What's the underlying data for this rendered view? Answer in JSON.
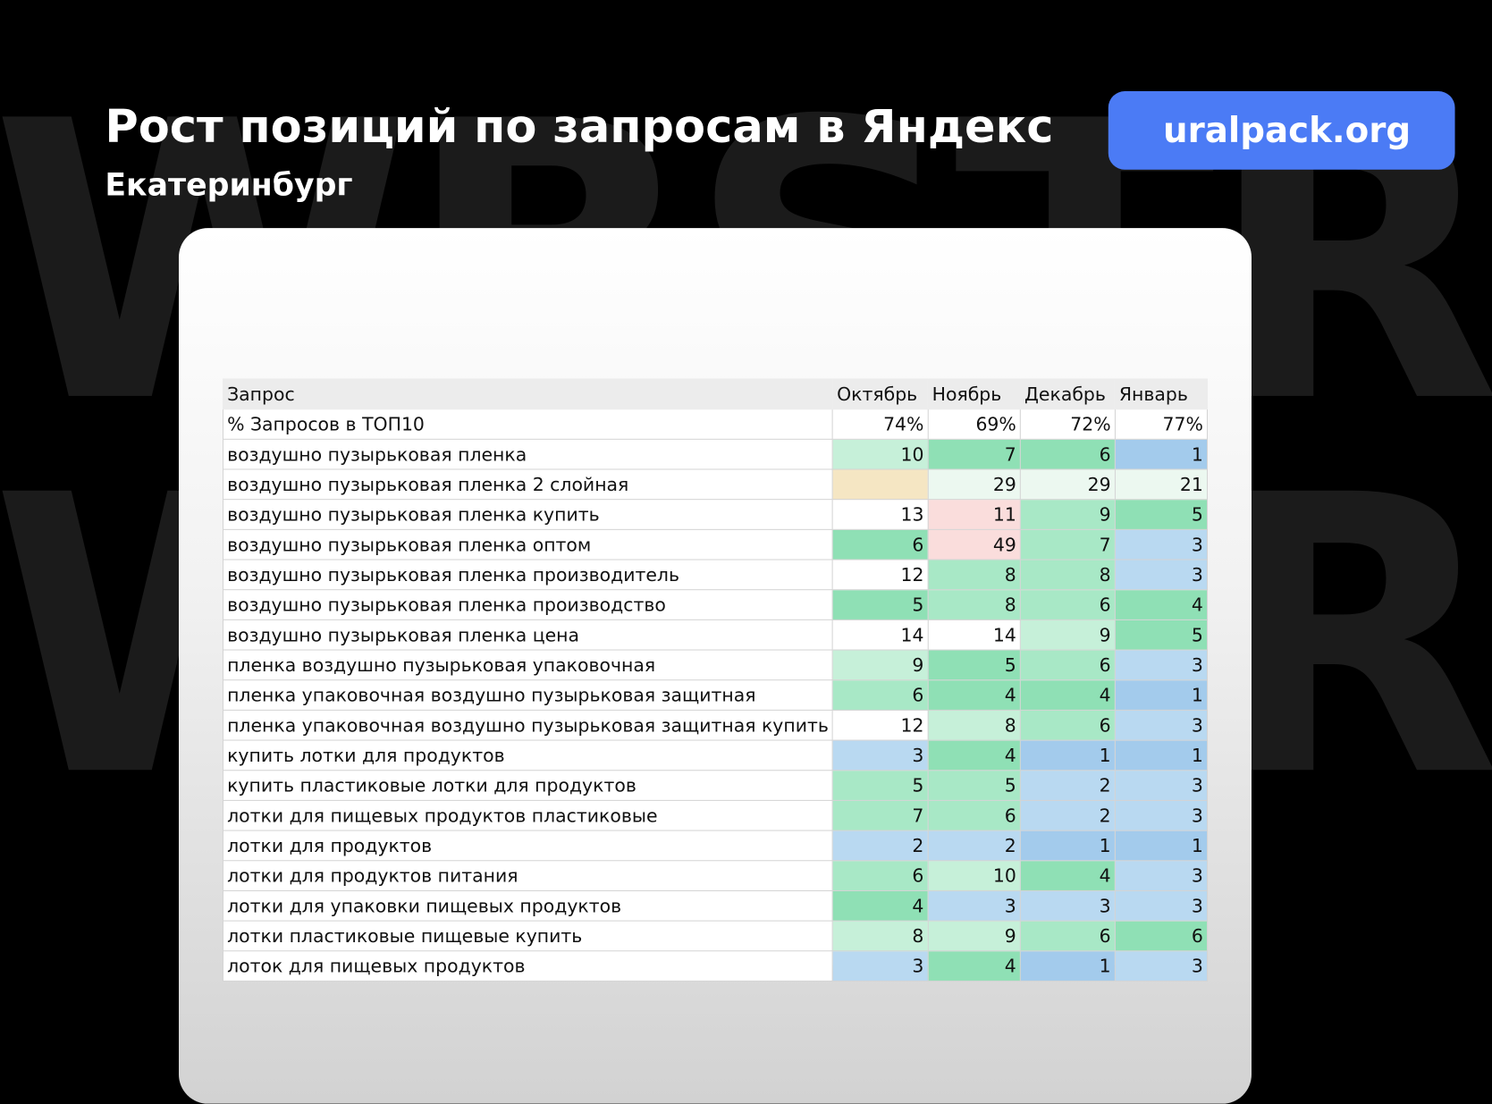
{
  "watermark": "WBSTR",
  "header": {
    "title": "Рост позиций по запросам в Яндекс",
    "subtitle": "Екатеринбург",
    "site_button": "uralpack.org"
  },
  "colors": {
    "accent": "#4b7bf5",
    "g1": "#8fe0b5",
    "g2": "#a8e8c6",
    "g3": "#c6f0d9",
    "g4": "#ecf8f0",
    "b1": "#a3cbec",
    "b2": "#b9d9f1",
    "p": "#fadddc",
    "y": "#f5e6c3",
    "w": "#ffffff"
  },
  "table": {
    "columns": [
      "Запрос",
      "Октябрь",
      "Ноябрь",
      "Декабрь",
      "Январь"
    ],
    "summary": {
      "label": "% Запросов в ТОП10",
      "values": [
        "74%",
        "69%",
        "72%",
        "77%"
      ]
    },
    "rows": [
      {
        "q": "воздушно пузырьковая пленка",
        "v": [
          "10",
          "7",
          "6",
          "1"
        ],
        "c": [
          "g3",
          "g1",
          "g1",
          "b1"
        ]
      },
      {
        "q": "воздушно пузырьковая пленка 2 слойная",
        "v": [
          "",
          "29",
          "29",
          "21"
        ],
        "c": [
          "y",
          "g4",
          "g4",
          "g4"
        ]
      },
      {
        "q": "воздушно пузырьковая пленка купить",
        "v": [
          "13",
          "11",
          "9",
          "5"
        ],
        "c": [
          "w",
          "p",
          "g2",
          "g1"
        ]
      },
      {
        "q": "воздушно пузырьковая пленка оптом",
        "v": [
          "6",
          "49",
          "7",
          "3"
        ],
        "c": [
          "g1",
          "p",
          "g2",
          "b2"
        ]
      },
      {
        "q": "воздушно пузырьковая пленка производитель",
        "v": [
          "12",
          "8",
          "8",
          "3"
        ],
        "c": [
          "w",
          "g2",
          "g2",
          "b2"
        ]
      },
      {
        "q": "воздушно пузырьковая пленка производство",
        "v": [
          "5",
          "8",
          "6",
          "4"
        ],
        "c": [
          "g1",
          "g2",
          "g2",
          "g1"
        ]
      },
      {
        "q": "воздушно пузырьковая пленка цена",
        "v": [
          "14",
          "14",
          "9",
          "5"
        ],
        "c": [
          "w",
          "w",
          "g3",
          "g1"
        ]
      },
      {
        "q": "пленка воздушно пузырьковая упаковочная",
        "v": [
          "9",
          "5",
          "6",
          "3"
        ],
        "c": [
          "g3",
          "g1",
          "g2",
          "b2"
        ]
      },
      {
        "q": "пленка упаковочная воздушно пузырьковая защитная",
        "v": [
          "6",
          "4",
          "4",
          "1"
        ],
        "c": [
          "g2",
          "g1",
          "g1",
          "b1"
        ]
      },
      {
        "q": "пленка упаковочная воздушно пузырьковая защитная купить",
        "v": [
          "12",
          "8",
          "6",
          "3"
        ],
        "c": [
          "w",
          "g3",
          "g2",
          "b2"
        ]
      },
      {
        "q": "купить лотки для продуктов",
        "v": [
          "3",
          "4",
          "1",
          "1"
        ],
        "c": [
          "b2",
          "g1",
          "b1",
          "b1"
        ]
      },
      {
        "q": "купить пластиковые лотки для продуктов",
        "v": [
          "5",
          "5",
          "2",
          "3"
        ],
        "c": [
          "g2",
          "g2",
          "b2",
          "b2"
        ]
      },
      {
        "q": "лотки для пищевых продуктов пластиковые",
        "v": [
          "7",
          "6",
          "2",
          "3"
        ],
        "c": [
          "g2",
          "g2",
          "b2",
          "b2"
        ]
      },
      {
        "q": "лотки для продуктов",
        "v": [
          "2",
          "2",
          "1",
          "1"
        ],
        "c": [
          "b2",
          "b2",
          "b1",
          "b1"
        ]
      },
      {
        "q": "лотки для продуктов питания",
        "v": [
          "6",
          "10",
          "4",
          "3"
        ],
        "c": [
          "g2",
          "g3",
          "g1",
          "b2"
        ]
      },
      {
        "q": "лотки для упаковки пищевых продуктов",
        "v": [
          "4",
          "3",
          "3",
          "3"
        ],
        "c": [
          "g1",
          "b2",
          "b2",
          "b2"
        ]
      },
      {
        "q": "лотки пластиковые пищевые купить",
        "v": [
          "8",
          "9",
          "6",
          "6"
        ],
        "c": [
          "g3",
          "g3",
          "g2",
          "g1"
        ]
      },
      {
        "q": "лоток для пищевых продуктов",
        "v": [
          "3",
          "4",
          "1",
          "3"
        ],
        "c": [
          "b2",
          "g1",
          "b1",
          "b2"
        ]
      }
    ]
  }
}
